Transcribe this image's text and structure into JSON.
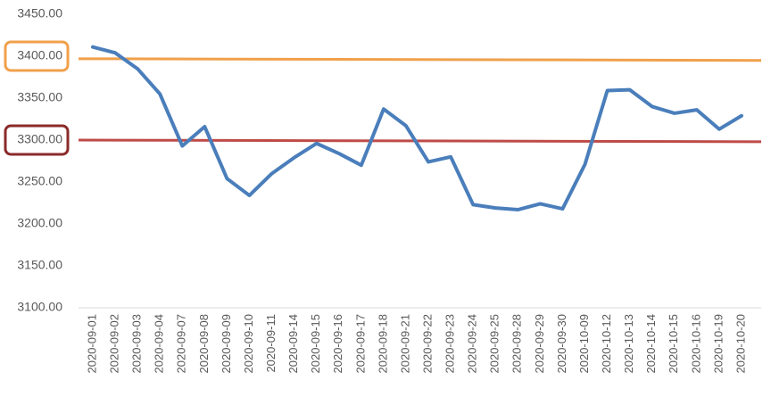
{
  "chart_data": {
    "type": "line",
    "categories": [
      "2020-09-01",
      "2020-09-02",
      "2020-09-03",
      "2020-09-04",
      "2020-09-07",
      "2020-09-08",
      "2020-09-09",
      "2020-09-10",
      "2020-09-11",
      "2020-09-14",
      "2020-09-15",
      "2020-09-16",
      "2020-09-17",
      "2020-09-18",
      "2020-09-21",
      "2020-09-22",
      "2020-09-23",
      "2020-09-24",
      "2020-09-25",
      "2020-09-28",
      "2020-09-29",
      "2020-09-30",
      "2020-10-09",
      "2020-10-12",
      "2020-10-13",
      "2020-10-14",
      "2020-10-15",
      "2020-10-16",
      "2020-10-19",
      "2020-10-20"
    ],
    "series": [
      {
        "color": "#4a7ebb",
        "values": [
          3411,
          3404,
          3385,
          3355,
          3293,
          3316,
          3254,
          3234,
          3260,
          3279,
          3296,
          3284,
          3270,
          3337,
          3317,
          3274,
          3280,
          3223,
          3219,
          3217,
          3224,
          3218,
          3271,
          3359,
          3360,
          3340,
          3332,
          3336,
          3313,
          3329
        ]
      }
    ],
    "reference_lines": [
      {
        "color": "#f0a04b",
        "values": [
          3397,
          3395
        ]
      },
      {
        "color": "#be4b48",
        "values": [
          3300,
          3298
        ]
      }
    ],
    "ylim": [
      3100,
      3450
    ],
    "yticks": [
      {
        "value": 3100,
        "label": "3100.00"
      },
      {
        "value": 3150,
        "label": "3150.00"
      },
      {
        "value": 3200,
        "label": "3200.00"
      },
      {
        "value": 3250,
        "label": "3250.00"
      },
      {
        "value": 3300,
        "label": "3300.00",
        "highlight": "#8b2b2b"
      },
      {
        "value": 3350,
        "label": "3350.00"
      },
      {
        "value": 3400,
        "label": "3400.00",
        "highlight": "#f0a04b"
      },
      {
        "value": 3450,
        "label": "3450.00"
      }
    ],
    "grid": false
  }
}
